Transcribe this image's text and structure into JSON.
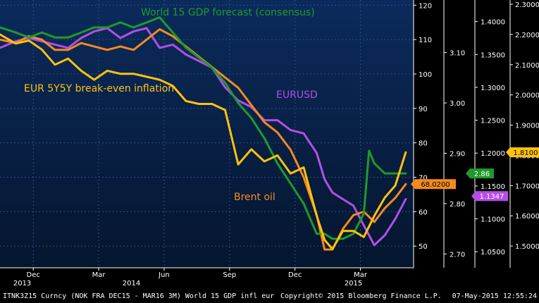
{
  "chart_data": {
    "type": "line",
    "title": "",
    "footer": {
      "left": "ITNK3Z15 Curncy (NOK FRA DEC15 - MAR16 3M) World 15 GDP infl eur",
      "center": "Copyright© 2015 Bloomberg Finance L.P.",
      "right": "07-May-2015 12:55:24"
    },
    "x_axis": {
      "range": [
        2013.79,
        2015.37
      ],
      "months": [
        {
          "label": "Dec",
          "x": 2013.917
        },
        {
          "label": "Mar",
          "x": 2014.167
        },
        {
          "label": "Jun",
          "x": 2014.417
        },
        {
          "label": "Sep",
          "x": 2014.667
        },
        {
          "label": "Dec",
          "x": 2014.917
        },
        {
          "label": "Mar",
          "x": 2015.167
        }
      ],
      "years": [
        {
          "label": "2013",
          "x": 2013.875
        },
        {
          "label": "2014",
          "x": 2014.292
        },
        {
          "label": "2015",
          "x": 2015.14
        }
      ]
    },
    "axes": [
      {
        "id": "brent",
        "ylim": [
          43.7,
          121.5
        ],
        "ticks": [
          50,
          60,
          70,
          80,
          90,
          100,
          110,
          120
        ],
        "labels": [
          "50",
          "60",
          "70",
          "80",
          "90",
          "100",
          "110",
          "120"
        ]
      },
      {
        "id": "gdp",
        "ylim": [
          2.6725,
          3.2045
        ],
        "ticks": [
          2.7,
          2.8,
          2.9,
          3.0,
          3.1
        ],
        "labels": [
          "2.70",
          "2.80",
          "2.90",
          "3.00",
          "3.10"
        ]
      },
      {
        "id": "eurusd",
        "ylim": [
          1.0256,
          1.4328
        ],
        "ticks": [
          1.05,
          1.1,
          1.15,
          1.2,
          1.25,
          1.3,
          1.35,
          1.4
        ],
        "labels": [
          "1.0500",
          "1.1000",
          "1.1500",
          "1.2000",
          "1.2500",
          "1.3000",
          "1.3500",
          "1.4000"
        ]
      },
      {
        "id": "breakeven",
        "ylim": [
          1.428,
          2.314
        ],
        "ticks": [
          1.5,
          1.6,
          1.7,
          1.8,
          1.9,
          2.0,
          2.1,
          2.2,
          2.3
        ],
        "labels": [
          "1.5000",
          "1.6000",
          "1.7000",
          "1.8000",
          "1.9000",
          "2.0000",
          "2.1000",
          "2.2000",
          "2.3000"
        ]
      }
    ],
    "series": [
      {
        "name": "EURUSD",
        "axis": "eurusd",
        "color": "#b44ee6",
        "annotation": "EURUSD",
        "last_value": "1.1347",
        "badge_bg": "#b44ee6",
        "badge_fg": "#ffffff",
        "x": [
          2013.79,
          2013.85,
          2013.9,
          2013.95,
          2014.0,
          2014.05,
          2014.1,
          2014.15,
          2014.2,
          2014.25,
          2014.3,
          2014.35,
          2014.4,
          2014.45,
          2014.5,
          2014.55,
          2014.6,
          2014.65,
          2014.7,
          2014.75,
          2014.8,
          2014.85,
          2014.9,
          2014.95,
          2015.0,
          2015.03,
          2015.06,
          2015.1,
          2015.14,
          2015.18,
          2015.22,
          2015.26,
          2015.3,
          2015.34
        ],
        "y": [
          1.36,
          1.37,
          1.375,
          1.37,
          1.365,
          1.36,
          1.375,
          1.385,
          1.39,
          1.375,
          1.385,
          1.39,
          1.36,
          1.365,
          1.35,
          1.34,
          1.33,
          1.3,
          1.28,
          1.27,
          1.25,
          1.25,
          1.235,
          1.23,
          1.2,
          1.16,
          1.14,
          1.13,
          1.12,
          1.09,
          1.06,
          1.075,
          1.1,
          1.13
        ]
      },
      {
        "name": "Brent oil",
        "axis": "brent",
        "color": "#f58a1f",
        "annotation": "Brent oil",
        "last_value": "68.0200",
        "badge_bg": "#f58a1f",
        "badge_fg": "#000000",
        "x": [
          2013.79,
          2013.85,
          2013.9,
          2013.95,
          2014.0,
          2014.05,
          2014.1,
          2014.15,
          2014.2,
          2014.25,
          2014.3,
          2014.35,
          2014.4,
          2014.45,
          2014.5,
          2014.55,
          2014.6,
          2014.65,
          2014.7,
          2014.75,
          2014.8,
          2014.85,
          2014.9,
          2014.95,
          2015.0,
          2015.03,
          2015.06,
          2015.1,
          2015.14,
          2015.18,
          2015.22,
          2015.26,
          2015.3,
          2015.34
        ],
        "y": [
          110,
          109,
          111,
          110,
          107,
          107,
          109,
          108,
          107,
          108,
          107,
          110,
          113,
          111,
          108,
          105,
          102,
          99,
          96,
          91,
          86,
          83,
          78,
          70,
          59,
          49,
          49,
          55,
          59,
          60,
          57,
          61,
          64,
          68
        ]
      },
      {
        "name": "World 15 GDP forecast (consensus)",
        "axis": "gdp",
        "color": "#1f9a2b",
        "annotation": "World 15 GDP forecast (consensus)",
        "last_value": "2.86",
        "badge_bg": "#1f9a2b",
        "badge_fg": "#ffffff",
        "x": [
          2013.79,
          2013.85,
          2013.9,
          2013.95,
          2014.0,
          2014.05,
          2014.1,
          2014.15,
          2014.2,
          2014.25,
          2014.3,
          2014.35,
          2014.4,
          2014.45,
          2014.5,
          2014.55,
          2014.6,
          2014.65,
          2014.7,
          2014.75,
          2014.8,
          2014.85,
          2014.9,
          2014.95,
          2015.0,
          2015.03,
          2015.06,
          2015.1,
          2015.14,
          2015.18,
          2015.2,
          2015.22,
          2015.26,
          2015.3,
          2015.34
        ],
        "y": [
          3.15,
          3.14,
          3.13,
          3.14,
          3.13,
          3.13,
          3.14,
          3.15,
          3.15,
          3.16,
          3.15,
          3.16,
          3.17,
          3.14,
          3.11,
          3.09,
          3.07,
          3.04,
          3.0,
          2.97,
          2.93,
          2.88,
          2.84,
          2.8,
          2.74,
          2.74,
          2.73,
          2.73,
          2.74,
          2.78,
          2.905,
          2.88,
          2.86,
          2.86,
          2.86
        ]
      },
      {
        "name": "EUR 5Y5Y break-even inflation",
        "axis": "breakeven",
        "color": "#ffc20e",
        "annotation": "EUR 5Y5Y break-even inflation",
        "last_value": "1.8100",
        "badge_bg": "#ffc20e",
        "badge_fg": "#000000",
        "x": [
          2013.79,
          2013.85,
          2013.9,
          2013.95,
          2014.0,
          2014.05,
          2014.1,
          2014.15,
          2014.2,
          2014.25,
          2014.3,
          2014.35,
          2014.4,
          2014.45,
          2014.5,
          2014.55,
          2014.6,
          2014.65,
          2014.7,
          2014.75,
          2014.8,
          2014.85,
          2014.9,
          2014.95,
          2015.0,
          2015.03,
          2015.06,
          2015.1,
          2015.14,
          2015.18,
          2015.22,
          2015.26,
          2015.3,
          2015.34
        ],
        "y": [
          2.2,
          2.17,
          2.18,
          2.15,
          2.1,
          2.12,
          2.08,
          2.05,
          2.08,
          2.07,
          2.07,
          2.06,
          2.05,
          2.03,
          1.98,
          1.97,
          1.97,
          1.95,
          1.77,
          1.82,
          1.78,
          1.8,
          1.74,
          1.76,
          1.6,
          1.52,
          1.49,
          1.55,
          1.55,
          1.53,
          1.6,
          1.66,
          1.7,
          1.81
        ]
      }
    ]
  }
}
